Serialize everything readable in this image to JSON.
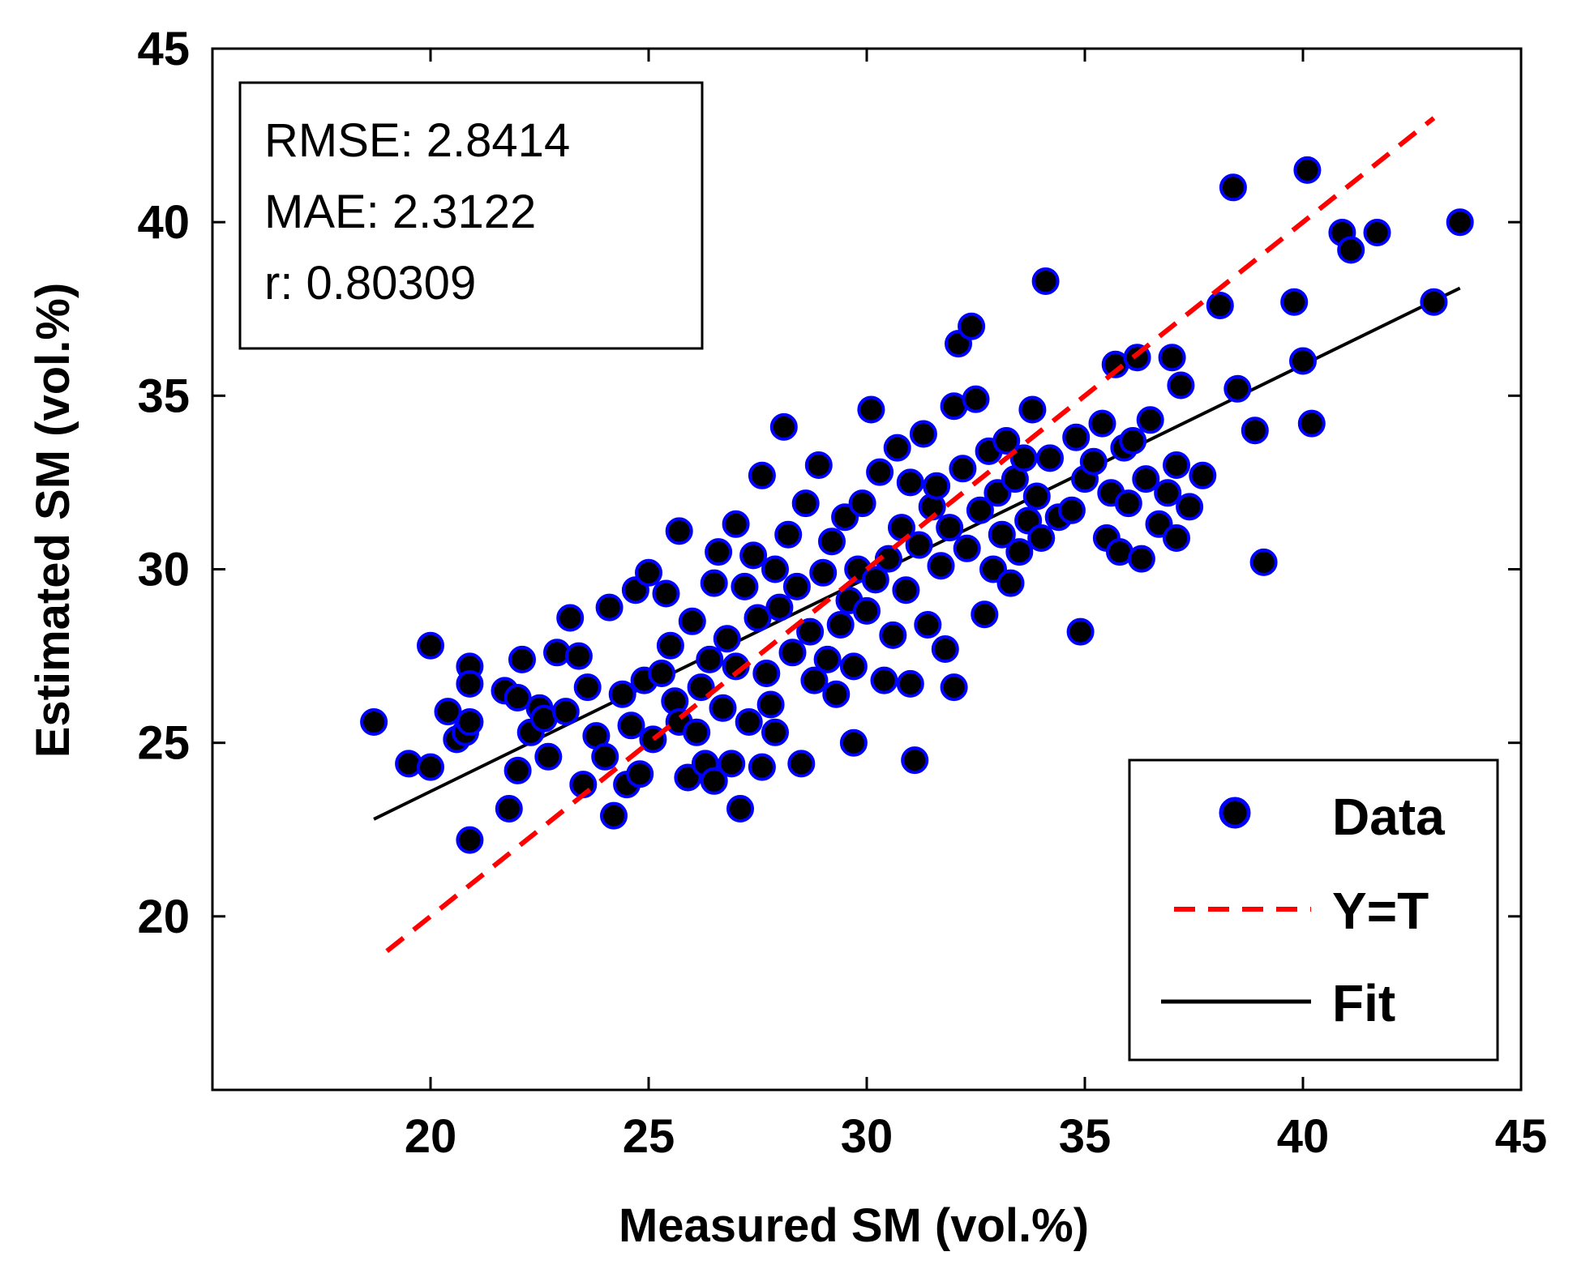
{
  "chart_data": {
    "type": "scatter",
    "title": "",
    "xlabel": "Measured SM (vol.%)",
    "ylabel": "Estimated SM (vol.%)",
    "xlim": [
      15,
      45
    ],
    "ylim": [
      15,
      45
    ],
    "xticks": [
      20,
      25,
      30,
      35,
      40,
      45
    ],
    "yticks": [
      20,
      25,
      30,
      35,
      40,
      45
    ],
    "xtick_labels": [
      "20",
      "25",
      "30",
      "35",
      "40",
      "45"
    ],
    "ytick_labels": [
      "20",
      "25",
      "30",
      "35",
      "40",
      "45"
    ],
    "grid": false,
    "stats": {
      "rmse_text": "RMSE: 2.8414",
      "mae_text": "MAE: 2.3122",
      "r_text": "r: 0.80309"
    },
    "legend": {
      "placement": "bottom-right",
      "entries": [
        "Data",
        "Y=T",
        "Fit"
      ]
    },
    "colors": {
      "marker_fill": "#000000",
      "marker_edge": "#0000ff",
      "identity_line": "#ff0000",
      "fit_line": "#000000",
      "axes": "#000000"
    },
    "identity_line": {
      "name": "Y=T",
      "x": [
        19,
        43
      ],
      "y": [
        19,
        43
      ]
    },
    "fit_line": {
      "name": "Fit",
      "x": [
        18.7,
        43.6
      ],
      "y": [
        22.8,
        38.1
      ]
    },
    "series": [
      {
        "name": "Data",
        "points": [
          [
            18.7,
            25.6
          ],
          [
            19.5,
            24.4
          ],
          [
            20.0,
            24.3
          ],
          [
            20.0,
            27.8
          ],
          [
            20.4,
            25.9
          ],
          [
            20.6,
            25.1
          ],
          [
            20.8,
            25.3
          ],
          [
            20.9,
            27.2
          ],
          [
            20.9,
            26.7
          ],
          [
            20.9,
            25.6
          ],
          [
            20.9,
            22.2
          ],
          [
            21.7,
            26.5
          ],
          [
            21.8,
            23.1
          ],
          [
            22.0,
            24.2
          ],
          [
            22.0,
            26.3
          ],
          [
            22.1,
            27.4
          ],
          [
            22.3,
            25.3
          ],
          [
            22.5,
            26.0
          ],
          [
            22.6,
            25.7
          ],
          [
            22.7,
            24.6
          ],
          [
            22.9,
            27.6
          ],
          [
            23.1,
            25.9
          ],
          [
            23.2,
            28.6
          ],
          [
            23.5,
            23.8
          ],
          [
            23.4,
            27.5
          ],
          [
            23.6,
            26.6
          ],
          [
            23.8,
            25.2
          ],
          [
            24.0,
            24.6
          ],
          [
            24.1,
            28.9
          ],
          [
            24.2,
            22.9
          ],
          [
            24.4,
            26.4
          ],
          [
            24.5,
            23.8
          ],
          [
            24.6,
            25.5
          ],
          [
            24.7,
            29.4
          ],
          [
            24.8,
            24.1
          ],
          [
            24.9,
            26.8
          ],
          [
            25.0,
            29.9
          ],
          [
            25.1,
            25.1
          ],
          [
            25.3,
            27.0
          ],
          [
            25.4,
            29.3
          ],
          [
            25.5,
            27.8
          ],
          [
            25.6,
            26.2
          ],
          [
            25.7,
            31.1
          ],
          [
            25.7,
            25.6
          ],
          [
            25.9,
            24.0
          ],
          [
            26.0,
            28.5
          ],
          [
            26.1,
            25.3
          ],
          [
            26.2,
            26.6
          ],
          [
            26.3,
            24.4
          ],
          [
            26.4,
            27.4
          ],
          [
            26.5,
            29.6
          ],
          [
            26.5,
            23.9
          ],
          [
            26.6,
            30.5
          ],
          [
            26.7,
            26.0
          ],
          [
            26.8,
            28.0
          ],
          [
            26.9,
            24.4
          ],
          [
            27.0,
            31.3
          ],
          [
            27.0,
            27.2
          ],
          [
            27.1,
            23.1
          ],
          [
            27.2,
            29.5
          ],
          [
            27.3,
            25.6
          ],
          [
            27.4,
            30.4
          ],
          [
            27.5,
            28.6
          ],
          [
            27.6,
            32.7
          ],
          [
            27.6,
            24.3
          ],
          [
            27.7,
            27.0
          ],
          [
            27.8,
            26.1
          ],
          [
            27.9,
            30.0
          ],
          [
            27.9,
            25.3
          ],
          [
            28.0,
            28.9
          ],
          [
            28.1,
            34.1
          ],
          [
            28.2,
            31.0
          ],
          [
            28.3,
            27.6
          ],
          [
            28.4,
            29.5
          ],
          [
            28.5,
            24.4
          ],
          [
            28.6,
            31.9
          ],
          [
            28.7,
            28.2
          ],
          [
            28.8,
            26.8
          ],
          [
            28.9,
            33.0
          ],
          [
            29.0,
            29.9
          ],
          [
            29.1,
            27.4
          ],
          [
            29.2,
            30.8
          ],
          [
            29.3,
            26.4
          ],
          [
            29.4,
            28.4
          ],
          [
            29.5,
            31.5
          ],
          [
            29.6,
            29.1
          ],
          [
            29.7,
            25.0
          ],
          [
            29.7,
            27.2
          ],
          [
            29.8,
            30.0
          ],
          [
            29.9,
            31.9
          ],
          [
            30.0,
            28.8
          ],
          [
            30.1,
            34.6
          ],
          [
            30.2,
            29.7
          ],
          [
            30.3,
            32.8
          ],
          [
            30.4,
            26.8
          ],
          [
            30.5,
            30.3
          ],
          [
            30.6,
            28.1
          ],
          [
            30.7,
            33.5
          ],
          [
            30.8,
            31.2
          ],
          [
            30.9,
            29.4
          ],
          [
            31.0,
            32.5
          ],
          [
            31.0,
            26.7
          ],
          [
            31.1,
            24.5
          ],
          [
            31.2,
            30.7
          ],
          [
            31.3,
            33.9
          ],
          [
            31.4,
            28.4
          ],
          [
            31.5,
            31.8
          ],
          [
            31.6,
            32.4
          ],
          [
            31.7,
            30.1
          ],
          [
            31.8,
            27.7
          ],
          [
            31.9,
            31.2
          ],
          [
            32.0,
            34.7
          ],
          [
            32.0,
            26.6
          ],
          [
            32.1,
            36.5
          ],
          [
            32.2,
            32.9
          ],
          [
            32.3,
            30.6
          ],
          [
            32.4,
            37.0
          ],
          [
            32.5,
            34.9
          ],
          [
            32.6,
            31.7
          ],
          [
            32.7,
            28.7
          ],
          [
            32.8,
            33.4
          ],
          [
            32.9,
            30.0
          ],
          [
            33.0,
            32.2
          ],
          [
            33.1,
            31.0
          ],
          [
            33.2,
            33.7
          ],
          [
            33.3,
            29.6
          ],
          [
            33.4,
            32.6
          ],
          [
            33.5,
            30.5
          ],
          [
            33.6,
            33.2
          ],
          [
            33.7,
            31.4
          ],
          [
            33.8,
            34.6
          ],
          [
            33.9,
            32.1
          ],
          [
            34.0,
            30.9
          ],
          [
            34.1,
            38.3
          ],
          [
            34.2,
            33.2
          ],
          [
            34.4,
            31.5
          ],
          [
            34.7,
            31.7
          ],
          [
            34.8,
            33.8
          ],
          [
            34.9,
            28.2
          ],
          [
            35.0,
            32.6
          ],
          [
            35.2,
            33.1
          ],
          [
            35.4,
            34.2
          ],
          [
            35.5,
            30.9
          ],
          [
            35.6,
            32.2
          ],
          [
            35.7,
            35.9
          ],
          [
            35.8,
            30.5
          ],
          [
            35.9,
            33.5
          ],
          [
            36.0,
            31.9
          ],
          [
            36.1,
            33.7
          ],
          [
            36.2,
            36.1
          ],
          [
            36.3,
            30.3
          ],
          [
            36.4,
            32.6
          ],
          [
            36.5,
            34.3
          ],
          [
            36.7,
            31.3
          ],
          [
            36.9,
            32.2
          ],
          [
            37.0,
            36.1
          ],
          [
            37.1,
            30.9
          ],
          [
            37.1,
            33.0
          ],
          [
            37.2,
            35.3
          ],
          [
            37.4,
            31.8
          ],
          [
            37.7,
            32.7
          ],
          [
            38.1,
            37.6
          ],
          [
            38.4,
            41.0
          ],
          [
            38.5,
            35.2
          ],
          [
            38.9,
            34.0
          ],
          [
            39.1,
            30.2
          ],
          [
            39.8,
            37.7
          ],
          [
            40.0,
            36.0
          ],
          [
            40.1,
            41.5
          ],
          [
            40.2,
            34.2
          ],
          [
            40.9,
            39.7
          ],
          [
            41.1,
            39.2
          ],
          [
            41.7,
            39.7
          ],
          [
            43.0,
            37.7
          ],
          [
            43.6,
            40.0
          ]
        ]
      }
    ]
  }
}
